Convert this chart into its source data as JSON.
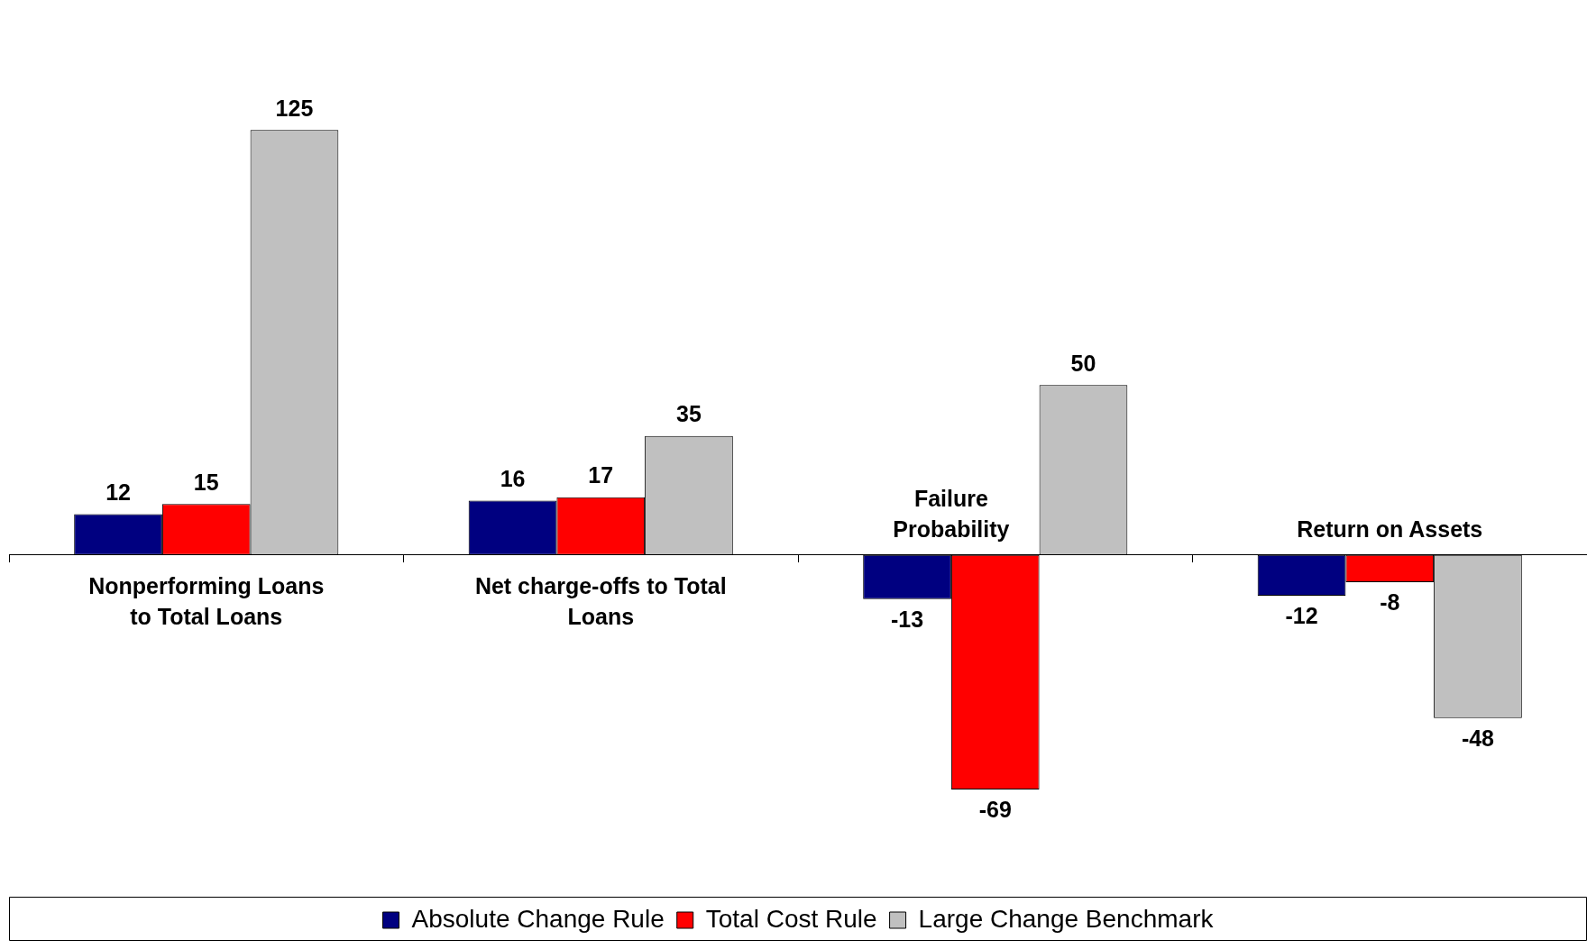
{
  "chart_data": {
    "type": "bar",
    "categories": [
      "Nonperforming Loans to Total Loans",
      "Net charge-offs to Total Loans",
      "Failure Probability",
      "Return on Assets"
    ],
    "series": [
      {
        "name": "Absolute Change Rule",
        "color": "#000080",
        "values": [
          12,
          16,
          -13,
          -12
        ]
      },
      {
        "name": "Total Cost Rule",
        "color": "#ff0000",
        "values": [
          15,
          17,
          -69,
          -8
        ]
      },
      {
        "name": "Large Change Benchmark",
        "color": "#c0c0c0",
        "values": [
          125,
          35,
          50,
          -48
        ]
      }
    ],
    "data_labels": true,
    "legend": "bottom",
    "grid": false
  }
}
